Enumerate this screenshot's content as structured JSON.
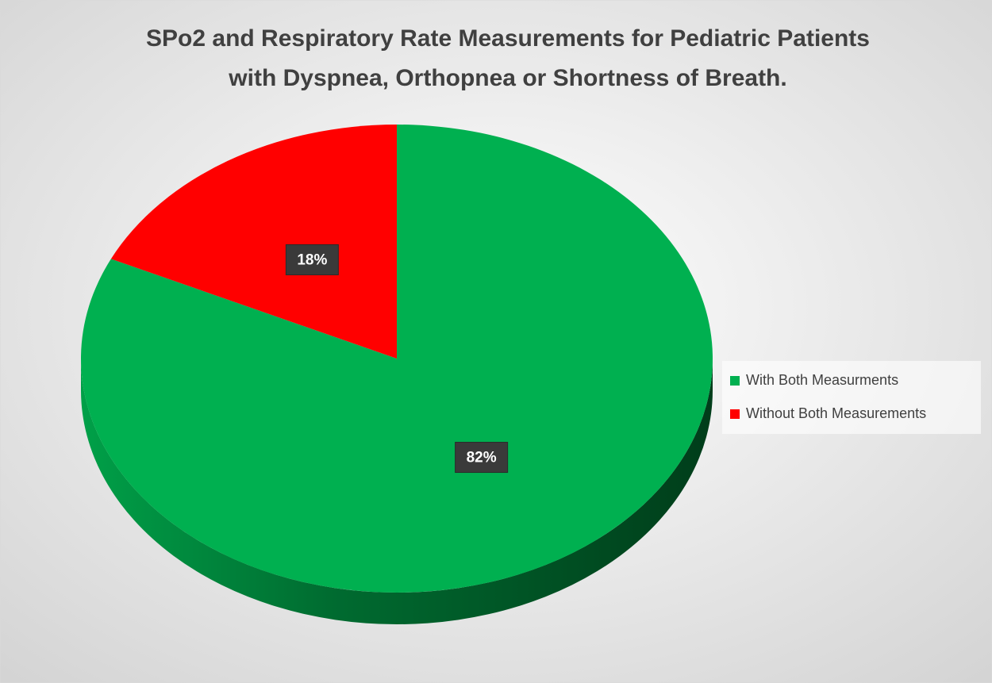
{
  "chart_data": {
    "type": "pie",
    "title": [
      "SPo2 and Respiratory Rate Measurements for Pediatric Patients",
      "with Dyspnea, Orthopnea or Shortness of Breath."
    ],
    "categories": [
      "With Both Measurments",
      "Without Both Measurements"
    ],
    "values": [
      82,
      18
    ],
    "value_labels": [
      "82%",
      "18%"
    ],
    "colors": [
      "#00b050",
      "#ff0000"
    ],
    "legend": "right"
  }
}
